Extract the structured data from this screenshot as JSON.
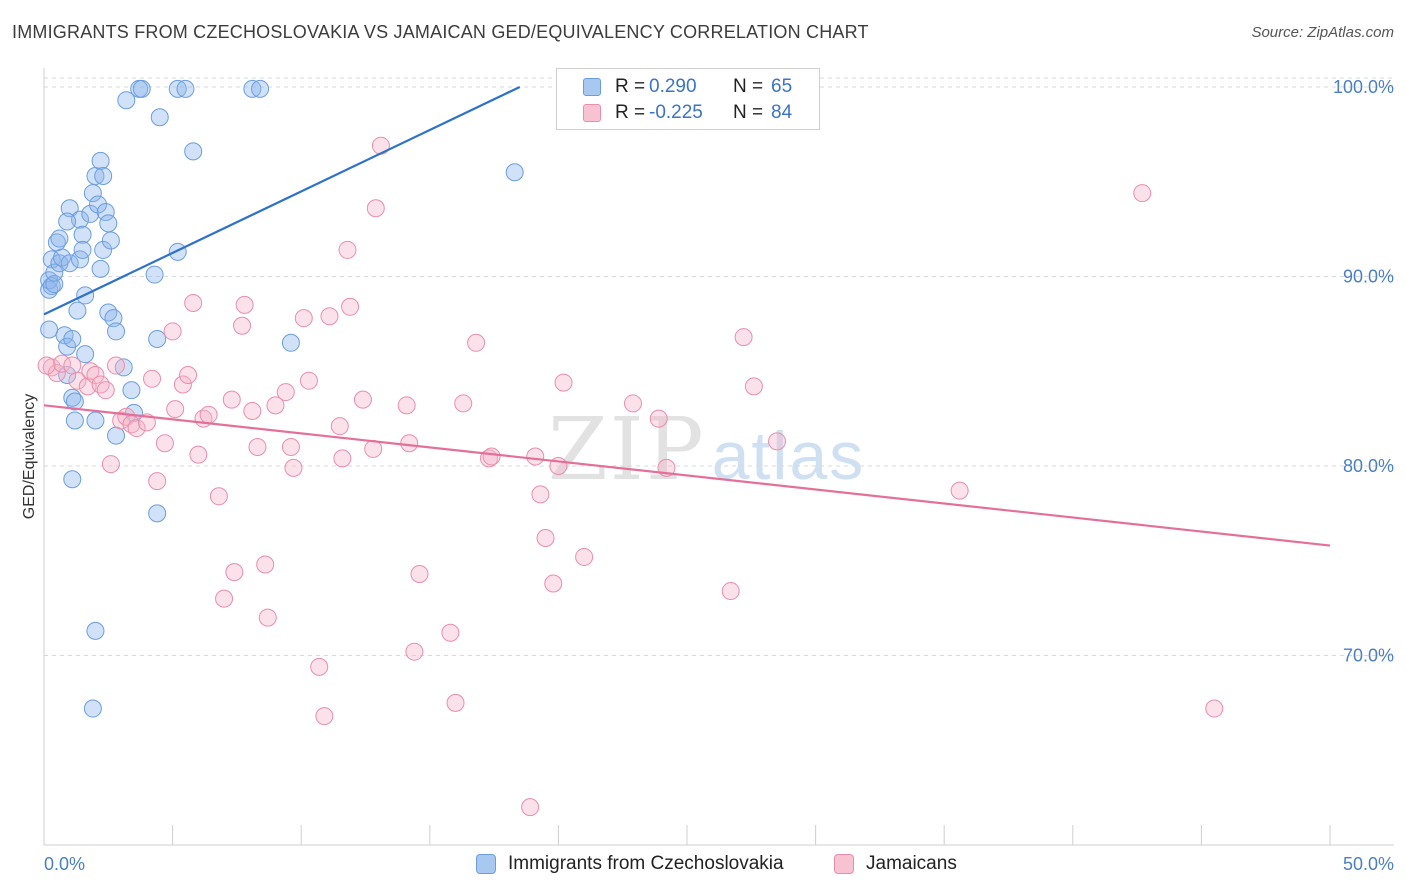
{
  "title": "IMMIGRANTS FROM CZECHOSLOVAKIA VS JAMAICAN GED/EQUIVALENCY CORRELATION CHART",
  "source": "Source: ZipAtlas.com",
  "watermark": {
    "zip": "ZIP",
    "atlas": "atlas"
  },
  "stats": {
    "rows": [
      {
        "r_label": "R =",
        "r_value": "0.290",
        "n_label": "N =",
        "n_value": "65",
        "color": "#a9c8f0",
        "border": "#6b9ee0"
      },
      {
        "r_label": "R =",
        "r_value": "-0.225",
        "n_label": "N =",
        "n_value": "84",
        "color": "#f7c3d3",
        "border": "#ea8fab"
      }
    ]
  },
  "legend": {
    "items": [
      {
        "label": "Immigrants from Czechoslovakia",
        "color": "#a9c8f0",
        "border": "#6b9ee0"
      },
      {
        "label": "Jamaicans",
        "color": "#f7c3d3",
        "border": "#ea8fab"
      }
    ]
  },
  "chart_data": {
    "type": "scatter",
    "ylabel": "GED/Equivalency",
    "xlabel": "",
    "xlim": [
      0,
      50
    ],
    "ylim": [
      60,
      101
    ],
    "x_tick_labels": [
      "0.0%",
      "50.0%"
    ],
    "y_ticks": [
      70,
      80,
      90,
      100
    ],
    "y_tick_labels": [
      "70.0%",
      "80.0%",
      "90.0%",
      "100.0%"
    ],
    "grid": true,
    "legend_position": "bottom",
    "series": [
      {
        "name": "Immigrants from Czechoslovakia",
        "color": "#6b9ee0",
        "fill": "rgba(140,180,235,0.40)",
        "trend": {
          "color": "#2f72c9",
          "x": [
            0.0,
            18.5
          ],
          "y": [
            88.0,
            100.0
          ]
        },
        "points": [
          [
            0.2,
            89.3
          ],
          [
            0.2,
            89.8
          ],
          [
            0.2,
            87.2
          ],
          [
            0.3,
            90.9
          ],
          [
            0.3,
            89.5
          ],
          [
            0.4,
            89.6
          ],
          [
            0.4,
            90.2
          ],
          [
            0.5,
            91.8
          ],
          [
            0.6,
            90.7
          ],
          [
            0.6,
            92.0
          ],
          [
            0.7,
            91.0
          ],
          [
            0.8,
            86.9
          ],
          [
            0.9,
            86.3
          ],
          [
            0.9,
            84.8
          ],
          [
            1.0,
            93.6
          ],
          [
            1.0,
            90.7
          ],
          [
            1.1,
            86.7
          ],
          [
            1.1,
            83.6
          ],
          [
            1.2,
            82.4
          ],
          [
            1.2,
            83.4
          ],
          [
            1.3,
            88.2
          ],
          [
            1.4,
            93.0
          ],
          [
            1.4,
            90.9
          ],
          [
            1.5,
            92.2
          ],
          [
            1.5,
            91.4
          ],
          [
            1.6,
            85.9
          ],
          [
            1.6,
            89.0
          ],
          [
            1.8,
            93.3
          ],
          [
            1.9,
            94.4
          ],
          [
            2.0,
            95.3
          ],
          [
            2.1,
            93.8
          ],
          [
            2.2,
            96.1
          ],
          [
            2.2,
            90.4
          ],
          [
            2.3,
            91.4
          ],
          [
            2.3,
            95.3
          ],
          [
            2.4,
            93.4
          ],
          [
            2.5,
            92.8
          ],
          [
            2.5,
            88.1
          ],
          [
            2.6,
            91.9
          ],
          [
            2.7,
            87.8
          ],
          [
            2.8,
            81.6
          ],
          [
            2.8,
            87.1
          ],
          [
            3.1,
            85.2
          ],
          [
            3.2,
            99.3
          ],
          [
            3.4,
            84.0
          ],
          [
            3.5,
            82.8
          ],
          [
            3.7,
            99.9
          ],
          [
            3.8,
            99.9
          ],
          [
            4.3,
            90.1
          ],
          [
            4.4,
            86.7
          ],
          [
            4.5,
            98.4
          ],
          [
            5.2,
            91.3
          ],
          [
            5.8,
            96.6
          ],
          [
            5.2,
            99.9
          ],
          [
            5.5,
            99.9
          ],
          [
            8.1,
            99.9
          ],
          [
            8.4,
            99.9
          ],
          [
            9.6,
            86.5
          ],
          [
            18.3,
            95.5
          ],
          [
            1.1,
            79.3
          ],
          [
            2.0,
            82.4
          ],
          [
            4.4,
            77.5
          ],
          [
            2.0,
            71.3
          ],
          [
            1.9,
            67.2
          ],
          [
            0.9,
            92.9
          ]
        ]
      },
      {
        "name": "Jamaicans",
        "color": "#ea8fab",
        "fill": "rgba(245,180,200,0.40)",
        "trend": {
          "color": "#e4709a",
          "x": [
            0.0,
            50.0
          ],
          "y": [
            83.2,
            75.8
          ]
        },
        "points": [
          [
            0.3,
            85.2
          ],
          [
            0.5,
            84.9
          ],
          [
            0.7,
            85.4
          ],
          [
            1.1,
            85.3
          ],
          [
            1.3,
            84.5
          ],
          [
            1.7,
            84.2
          ],
          [
            1.8,
            85.0
          ],
          [
            2.0,
            84.8
          ],
          [
            2.2,
            84.3
          ],
          [
            2.4,
            84.0
          ],
          [
            2.6,
            80.1
          ],
          [
            2.8,
            85.3
          ],
          [
            3.0,
            82.4
          ],
          [
            3.2,
            82.6
          ],
          [
            3.4,
            82.2
          ],
          [
            3.6,
            82.0
          ],
          [
            4.0,
            82.3
          ],
          [
            4.2,
            84.6
          ],
          [
            4.4,
            79.2
          ],
          [
            4.7,
            81.2
          ],
          [
            5.0,
            87.1
          ],
          [
            5.1,
            83.0
          ],
          [
            5.4,
            84.3
          ],
          [
            5.6,
            84.8
          ],
          [
            5.8,
            88.6
          ],
          [
            6.0,
            80.6
          ],
          [
            6.2,
            82.5
          ],
          [
            6.4,
            82.7
          ],
          [
            6.8,
            78.4
          ],
          [
            7.0,
            73.0
          ],
          [
            7.3,
            83.5
          ],
          [
            7.4,
            74.4
          ],
          [
            7.7,
            87.4
          ],
          [
            7.8,
            88.5
          ],
          [
            8.1,
            82.9
          ],
          [
            8.3,
            81.0
          ],
          [
            8.6,
            74.8
          ],
          [
            8.7,
            72.0
          ],
          [
            9.0,
            83.2
          ],
          [
            9.4,
            83.9
          ],
          [
            9.6,
            81.0
          ],
          [
            9.7,
            79.9
          ],
          [
            10.1,
            87.8
          ],
          [
            10.3,
            84.5
          ],
          [
            10.7,
            69.4
          ],
          [
            10.9,
            66.8
          ],
          [
            11.1,
            87.9
          ],
          [
            11.5,
            82.1
          ],
          [
            11.6,
            80.4
          ],
          [
            11.8,
            91.4
          ],
          [
            11.9,
            88.4
          ],
          [
            12.4,
            83.5
          ],
          [
            12.8,
            80.9
          ],
          [
            12.9,
            93.6
          ],
          [
            13.1,
            96.9
          ],
          [
            14.1,
            83.2
          ],
          [
            14.2,
            81.2
          ],
          [
            14.4,
            70.2
          ],
          [
            14.6,
            74.3
          ],
          [
            15.8,
            71.2
          ],
          [
            16.0,
            67.5
          ],
          [
            16.3,
            83.3
          ],
          [
            16.8,
            86.5
          ],
          [
            17.3,
            80.4
          ],
          [
            17.4,
            80.5
          ],
          [
            18.9,
            62.0
          ],
          [
            19.1,
            80.5
          ],
          [
            19.3,
            78.5
          ],
          [
            19.5,
            76.2
          ],
          [
            19.8,
            73.8
          ],
          [
            20.0,
            80.0
          ],
          [
            20.2,
            84.4
          ],
          [
            21.0,
            75.2
          ],
          [
            22.9,
            83.3
          ],
          [
            23.9,
            82.5
          ],
          [
            24.2,
            79.9
          ],
          [
            26.7,
            73.4
          ],
          [
            27.2,
            86.8
          ],
          [
            27.6,
            84.2
          ],
          [
            28.5,
            81.3
          ],
          [
            35.6,
            78.7
          ],
          [
            42.7,
            94.4
          ],
          [
            45.5,
            67.2
          ],
          [
            0.1,
            85.3
          ]
        ]
      }
    ]
  }
}
